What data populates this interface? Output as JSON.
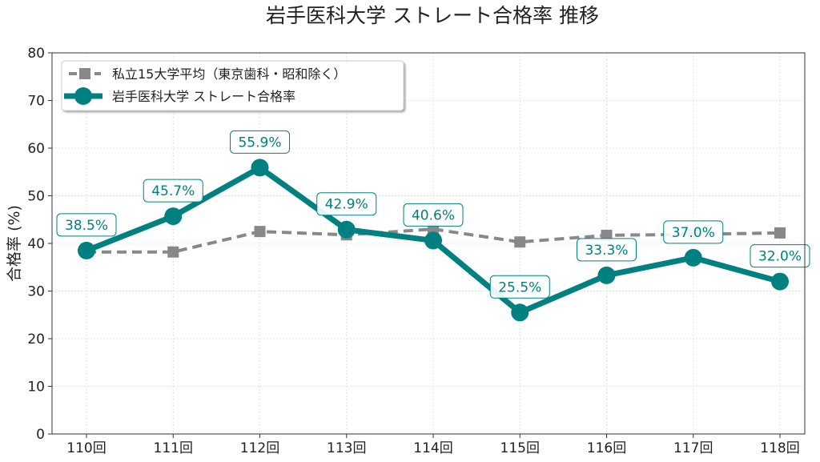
{
  "chart_data": {
    "type": "line",
    "title": "岩手医科大学 ストレート合格率 推移",
    "xlabel": "",
    "ylabel": "合格率 (%)",
    "ylim": [
      0,
      80
    ],
    "yticks": [
      "0",
      "10",
      "20",
      "30",
      "40",
      "50",
      "60",
      "70",
      "80"
    ],
    "categories": [
      "110回",
      "111回",
      "112回",
      "113回",
      "114回",
      "115回",
      "116回",
      "117回",
      "118回"
    ],
    "grid": true,
    "legend_position": "top-left",
    "series": [
      {
        "name": "私立15大学平均（東京歯科・昭和除く）",
        "values": [
          38.2,
          38.2,
          42.5,
          41.8,
          43.0,
          40.3,
          41.7,
          41.9,
          42.2
        ],
        "color": "#888888",
        "style": "dashed",
        "marker": "square"
      },
      {
        "name": "岩手医科大学 ストレート合格率",
        "values": [
          38.5,
          45.7,
          55.9,
          42.9,
          40.6,
          25.5,
          33.3,
          37.0,
          32.0
        ],
        "color": "#008080",
        "style": "solid",
        "marker": "circle",
        "labels": [
          "38.5%",
          "45.7%",
          "55.9%",
          "42.9%",
          "40.6%",
          "25.5%",
          "33.3%",
          "37.0%",
          "32.0%"
        ]
      }
    ]
  }
}
